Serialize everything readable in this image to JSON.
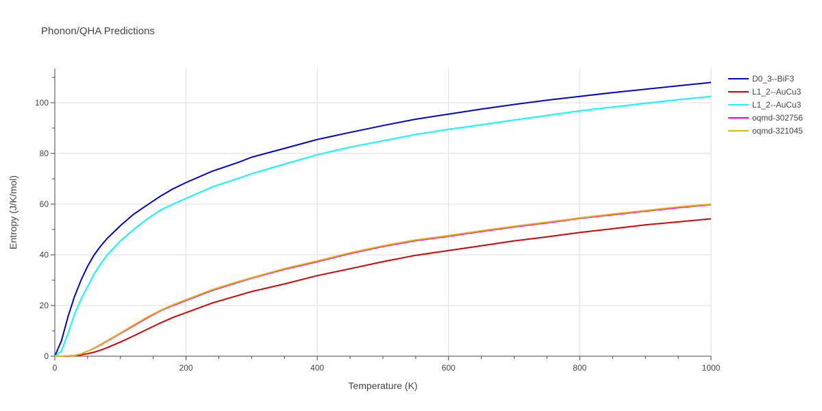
{
  "chart_data": {
    "type": "line",
    "title": "Phonon/QHA Predictions",
    "xlabel": "Temperature (K)",
    "ylabel": "Entropy (J/K/mol)",
    "xlim": [
      0,
      1000
    ],
    "ylim": [
      0,
      113.5
    ],
    "xticks": [
      0,
      200,
      400,
      600,
      800,
      1000
    ],
    "yticks": [
      0,
      20,
      40,
      60,
      80,
      100
    ],
    "grid": true,
    "legend_position": "top-right",
    "x": [
      0,
      10,
      20,
      30,
      40,
      50,
      60,
      70,
      80,
      100,
      120,
      140,
      160,
      180,
      200,
      240,
      280,
      300,
      350,
      400,
      450,
      500,
      550,
      600,
      650,
      700,
      750,
      800,
      850,
      900,
      950,
      1000
    ],
    "series": [
      {
        "name": "D0_3--BiF3",
        "color": "#0000dd",
        "values": [
          0,
          6,
          15.5,
          23.5,
          30,
          35.5,
          40,
          43.5,
          46.5,
          51.5,
          56,
          59.5,
          63,
          66,
          68.5,
          73,
          76.5,
          78.5,
          82,
          85.5,
          88.3,
          91,
          93.5,
          95.5,
          97.5,
          99.3,
          101,
          102.5,
          104,
          105.3,
          106.7,
          108
        ]
      },
      {
        "name": "L1_2--AuCu3",
        "color": "#dd0000",
        "values": [
          0,
          0,
          0,
          0.2,
          0.5,
          1,
          1.6,
          2.4,
          3.4,
          5.6,
          8,
          10.5,
          13,
          15.3,
          17.2,
          21,
          24,
          25.5,
          28.5,
          31.8,
          34.5,
          37.3,
          39.8,
          41.7,
          43.6,
          45.5,
          47.1,
          48.8,
          50.3,
          51.8,
          53,
          54.2
        ]
      },
      {
        "name": "L1_2--AuCu3",
        "color": "#00ffff",
        "values": [
          0,
          2,
          9,
          16.5,
          22.5,
          27.5,
          32.5,
          36.5,
          40,
          45.5,
          50,
          54,
          57.5,
          60,
          62.3,
          66.8,
          70.2,
          72,
          75.8,
          79.5,
          82.5,
          85,
          87.5,
          89.5,
          91.3,
          93.2,
          95,
          96.8,
          98.3,
          99.8,
          101.2,
          102.5
        ]
      },
      {
        "name": "oqmd-302756",
        "color": "#ff00ff",
        "values": [
          0,
          0,
          0.1,
          0.3,
          0.9,
          2,
          3.2,
          4.5,
          6,
          9,
          12,
          15,
          17.8,
          20,
          22,
          26,
          29.2,
          30.8,
          34.3,
          37.3,
          40.5,
          43.3,
          45.6,
          47.3,
          49.2,
          51,
          52.6,
          54.4,
          55.8,
          57.2,
          58.6,
          59.8
        ]
      },
      {
        "name": "oqmd-321045",
        "color": "#e6b800",
        "values": [
          0,
          0,
          0.1,
          0.3,
          0.9,
          2,
          3.3,
          4.7,
          6.2,
          9.2,
          12.3,
          15.3,
          18,
          20.3,
          22.3,
          26.3,
          29.5,
          31,
          34.6,
          37.6,
          40.8,
          43.6,
          45.9,
          47.6,
          49.5,
          51.3,
          52.9,
          54.6,
          56.1,
          57.5,
          58.9,
          60
        ]
      }
    ]
  }
}
